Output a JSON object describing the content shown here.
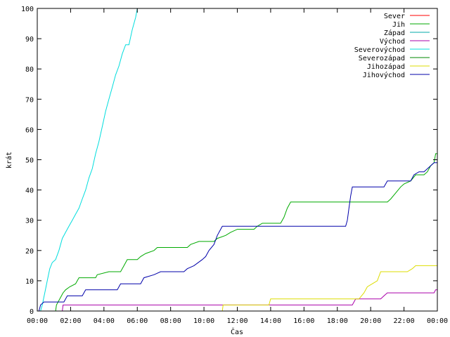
{
  "chart_data": {
    "type": "line",
    "title": "",
    "xlabel": "Čas",
    "ylabel": "krát",
    "xlim": [
      0,
      24
    ],
    "ylim": [
      0,
      100
    ],
    "grid": false,
    "legend_position": "top-right",
    "x_ticks": [
      {
        "value": 0,
        "label": "00:00"
      },
      {
        "value": 2,
        "label": "02:00"
      },
      {
        "value": 4,
        "label": "04:00"
      },
      {
        "value": 6,
        "label": "06:00"
      },
      {
        "value": 8,
        "label": "08:00"
      },
      {
        "value": 10,
        "label": "10:00"
      },
      {
        "value": 12,
        "label": "12:00"
      },
      {
        "value": 14,
        "label": "14:00"
      },
      {
        "value": 16,
        "label": "16:00"
      },
      {
        "value": 18,
        "label": "18:00"
      },
      {
        "value": 20,
        "label": "20:00"
      },
      {
        "value": 22,
        "label": "22:00"
      },
      {
        "value": 24,
        "label": "00:00"
      }
    ],
    "y_ticks": [
      {
        "value": 0,
        "label": "0"
      },
      {
        "value": 10,
        "label": "10"
      },
      {
        "value": 20,
        "label": "20"
      },
      {
        "value": 30,
        "label": "30"
      },
      {
        "value": 40,
        "label": "40"
      },
      {
        "value": 50,
        "label": "50"
      },
      {
        "value": 60,
        "label": "60"
      },
      {
        "value": 70,
        "label": "70"
      },
      {
        "value": 80,
        "label": "80"
      },
      {
        "value": 90,
        "label": "90"
      },
      {
        "value": 100,
        "label": "100"
      }
    ],
    "series": [
      {
        "name": "Sever",
        "color": "#ff0000",
        "points": []
      },
      {
        "name": "Jih",
        "color": "#00aa00",
        "points": [
          [
            1.1,
            0
          ],
          [
            1.15,
            2
          ],
          [
            1.35,
            4
          ],
          [
            1.55,
            6
          ],
          [
            1.7,
            7
          ],
          [
            1.95,
            8
          ],
          [
            2.3,
            9
          ],
          [
            2.5,
            11
          ],
          [
            3.5,
            11
          ],
          [
            3.6,
            12
          ],
          [
            4.3,
            13
          ],
          [
            5.0,
            13
          ],
          [
            5.2,
            15
          ],
          [
            5.4,
            17
          ],
          [
            6.0,
            17
          ],
          [
            6.2,
            18
          ],
          [
            6.5,
            19
          ],
          [
            7.0,
            20
          ],
          [
            7.2,
            21
          ],
          [
            9.0,
            21
          ],
          [
            9.2,
            22
          ],
          [
            9.7,
            23
          ],
          [
            10.6,
            23
          ],
          [
            10.8,
            24
          ],
          [
            11.3,
            25
          ],
          [
            11.6,
            26
          ],
          [
            12.0,
            27
          ],
          [
            13.0,
            27
          ],
          [
            13.2,
            28
          ],
          [
            13.5,
            29
          ],
          [
            14.6,
            29
          ],
          [
            14.8,
            31
          ],
          [
            15.0,
            34
          ],
          [
            15.2,
            36
          ],
          [
            21.0,
            36
          ],
          [
            21.2,
            37
          ],
          [
            21.5,
            39
          ],
          [
            21.8,
            41
          ],
          [
            22.0,
            42
          ],
          [
            22.4,
            43
          ],
          [
            22.7,
            45
          ],
          [
            23.2,
            45
          ],
          [
            23.4,
            46
          ],
          [
            23.6,
            48
          ],
          [
            23.8,
            49
          ],
          [
            23.9,
            52
          ],
          [
            24.0,
            52
          ]
        ]
      },
      {
        "name": "Západ",
        "color": "#00aaaa",
        "points": []
      },
      {
        "name": "Východ",
        "color": "#aa00aa",
        "points": [
          [
            1.5,
            0
          ],
          [
            1.55,
            2
          ],
          [
            14.0,
            2
          ],
          [
            18.9,
            2
          ],
          [
            19.1,
            4
          ],
          [
            20.6,
            4
          ],
          [
            20.8,
            5
          ],
          [
            21.0,
            6
          ],
          [
            23.8,
            6
          ],
          [
            23.9,
            7
          ],
          [
            24.0,
            7
          ]
        ]
      },
      {
        "name": "Severovýchod",
        "color": "#00dddd",
        "points": [
          [
            0.2,
            0
          ],
          [
            0.3,
            2
          ],
          [
            0.45,
            6
          ],
          [
            0.6,
            10
          ],
          [
            0.75,
            14
          ],
          [
            0.9,
            16
          ],
          [
            1.1,
            17
          ],
          [
            1.3,
            20
          ],
          [
            1.5,
            24
          ],
          [
            1.7,
            26
          ],
          [
            1.9,
            28
          ],
          [
            2.1,
            30
          ],
          [
            2.3,
            32
          ],
          [
            2.5,
            34
          ],
          [
            2.7,
            37
          ],
          [
            2.9,
            40
          ],
          [
            3.1,
            44
          ],
          [
            3.3,
            47
          ],
          [
            3.5,
            52
          ],
          [
            3.7,
            56
          ],
          [
            3.9,
            61
          ],
          [
            4.1,
            66
          ],
          [
            4.3,
            70
          ],
          [
            4.5,
            74
          ],
          [
            4.7,
            78
          ],
          [
            4.9,
            81
          ],
          [
            5.1,
            85
          ],
          [
            5.3,
            88
          ],
          [
            5.5,
            88
          ],
          [
            5.7,
            93
          ],
          [
            5.9,
            97
          ],
          [
            6.0,
            100
          ]
        ]
      },
      {
        "name": "Severozápad",
        "color": "#008800",
        "points": []
      },
      {
        "name": "Jihozápad",
        "color": "#dddd00",
        "points": [
          [
            11.1,
            0
          ],
          [
            11.15,
            2
          ],
          [
            13.9,
            2
          ],
          [
            14.0,
            4
          ],
          [
            19.3,
            4
          ],
          [
            19.6,
            6
          ],
          [
            19.8,
            8
          ],
          [
            20.1,
            9
          ],
          [
            20.4,
            10
          ],
          [
            20.6,
            13
          ],
          [
            22.2,
            13
          ],
          [
            22.5,
            14
          ],
          [
            22.7,
            15
          ],
          [
            24.0,
            15
          ]
        ]
      },
      {
        "name": "Jihovýchod",
        "color": "#0000aa",
        "points": [
          [
            0.1,
            0
          ],
          [
            0.2,
            2
          ],
          [
            0.4,
            3
          ],
          [
            1.6,
            3
          ],
          [
            1.8,
            5
          ],
          [
            2.7,
            5
          ],
          [
            2.9,
            7
          ],
          [
            4.8,
            7
          ],
          [
            5.0,
            9
          ],
          [
            6.2,
            9
          ],
          [
            6.4,
            11
          ],
          [
            7.0,
            12
          ],
          [
            7.4,
            13
          ],
          [
            8.8,
            13
          ],
          [
            9.0,
            14
          ],
          [
            9.4,
            15
          ],
          [
            9.9,
            17
          ],
          [
            10.1,
            18
          ],
          [
            10.3,
            20
          ],
          [
            10.6,
            22
          ],
          [
            10.8,
            25
          ],
          [
            11.0,
            27
          ],
          [
            11.1,
            28
          ],
          [
            18.5,
            28
          ],
          [
            18.6,
            30
          ],
          [
            18.7,
            34
          ],
          [
            18.8,
            38
          ],
          [
            18.9,
            41
          ],
          [
            20.8,
            41
          ],
          [
            21.0,
            43
          ],
          [
            22.4,
            43
          ],
          [
            22.6,
            45
          ],
          [
            22.9,
            46
          ],
          [
            23.2,
            46
          ],
          [
            23.4,
            47
          ],
          [
            23.6,
            48
          ],
          [
            23.8,
            49
          ],
          [
            24.0,
            49
          ]
        ]
      }
    ]
  }
}
